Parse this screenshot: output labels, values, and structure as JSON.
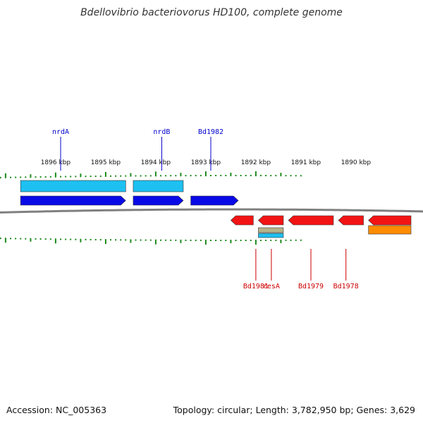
{
  "title": "Bdellovibrio bacteriovorus HD100, complete genome",
  "footer": {
    "accession": "Accession: NC_005363",
    "stats": "Topology: circular; Length: 3,782,950 bp; Genes: 3,629"
  },
  "colors": {
    "forward_gene": "#0a0ae6",
    "forward_cds": "#1ec0f2",
    "reverse_gene": "#f21414",
    "reverse_cds": "#ff8c00",
    "rrna": "#b8b48a",
    "tick": "#1a8a1a",
    "backbone": "#808080",
    "forward_label": "#0000cc",
    "reverse_label": "#cc0000"
  },
  "scale": {
    "unit": "kbp",
    "major_ticks": [
      {
        "kbp": 1896,
        "label": "1896 kbp"
      },
      {
        "kbp": 1895,
        "label": "1895 kbp"
      },
      {
        "kbp": 1894,
        "label": "1894 kbp"
      },
      {
        "kbp": 1893,
        "label": "1893 kbp"
      },
      {
        "kbp": 1892,
        "label": "1892 kbp"
      },
      {
        "kbp": 1891,
        "label": "1891 kbp"
      },
      {
        "kbp": 1890,
        "label": "1890 kbp"
      }
    ]
  },
  "features": {
    "forward_cds": [
      {
        "start": 1896.7,
        "end": 1894.6
      },
      {
        "start": 1894.45,
        "end": 1893.45
      }
    ],
    "forward_genes": [
      {
        "start": 1896.7,
        "end": 1894.6
      },
      {
        "start": 1894.45,
        "end": 1893.45
      },
      {
        "start": 1893.3,
        "end": 1892.35
      }
    ],
    "reverse_genes": [
      {
        "start": 1892.5,
        "end": 1892.05
      },
      {
        "start": 1891.95,
        "end": 1891.45
      },
      {
        "start": 1891.35,
        "end": 1890.45
      },
      {
        "start": 1890.35,
        "end": 1889.85
      },
      {
        "start": 1889.75,
        "end": 1888.9
      }
    ],
    "reverse_cds": [
      {
        "start": 1889.75,
        "end": 1888.9
      }
    ],
    "rrna": [
      {
        "start": 1891.95,
        "end": 1891.45
      }
    ]
  },
  "labels": {
    "forward": [
      {
        "name": "nrdA",
        "kbp": 1895.9
      },
      {
        "name": "nrdB",
        "kbp": 1893.88
      },
      {
        "name": "Bd1982",
        "kbp": 1892.9
      }
    ],
    "reverse": [
      {
        "name": "Bd1981",
        "kbp": 1892.0
      },
      {
        "name": "resA",
        "kbp": 1891.69
      },
      {
        "name": "Bd1979",
        "kbp": 1890.9
      },
      {
        "name": "Bd1978",
        "kbp": 1890.2
      }
    ]
  }
}
